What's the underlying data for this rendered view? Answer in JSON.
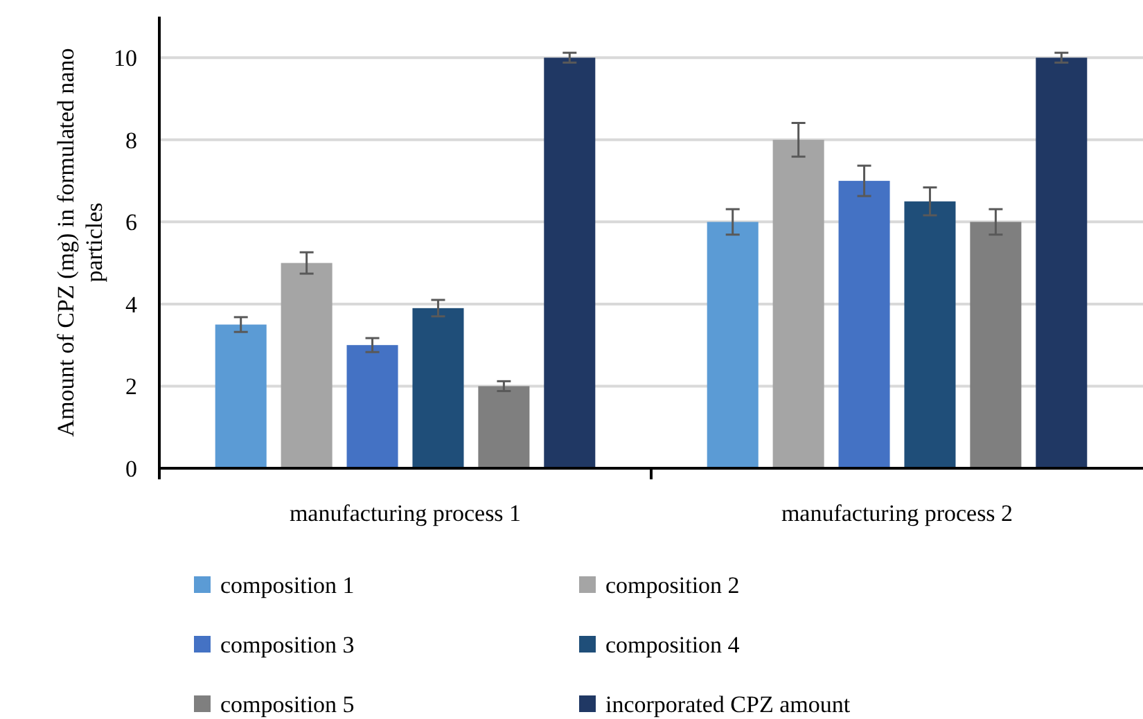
{
  "chart_data": {
    "type": "bar",
    "ylabel": "Amount of CPZ (mg)  in formulated nano particles",
    "categories": [
      "manufacturing process 1",
      "manufacturing process 2"
    ],
    "series": [
      {
        "name": "composition 1",
        "color": "#5b9bd5",
        "values": [
          3.5,
          6
        ],
        "errors": [
          0.18,
          0.31
        ]
      },
      {
        "name": "composition 2",
        "color": "#a5a5a5",
        "values": [
          5,
          8
        ],
        "errors": [
          0.26,
          0.41
        ]
      },
      {
        "name": "composition 3",
        "color": "#4472c4",
        "values": [
          3,
          7
        ],
        "errors": [
          0.17,
          0.37
        ]
      },
      {
        "name": "composition 4",
        "color": "#1f4e79",
        "values": [
          3.9,
          6.5
        ],
        "errors": [
          0.2,
          0.34
        ]
      },
      {
        "name": "composition 5",
        "color": "#7f7f7f",
        "values": [
          2,
          6
        ],
        "errors": [
          0.12,
          0.31
        ]
      },
      {
        "name": "incorporated CPZ amount",
        "color": "#203864",
        "values": [
          10,
          10
        ],
        "errors": [
          0.12,
          0.12
        ]
      }
    ],
    "ylim": [
      0,
      11
    ],
    "yticks": [
      0,
      2,
      4,
      6,
      8,
      10
    ],
    "grid": "y",
    "legend": "bottom"
  }
}
